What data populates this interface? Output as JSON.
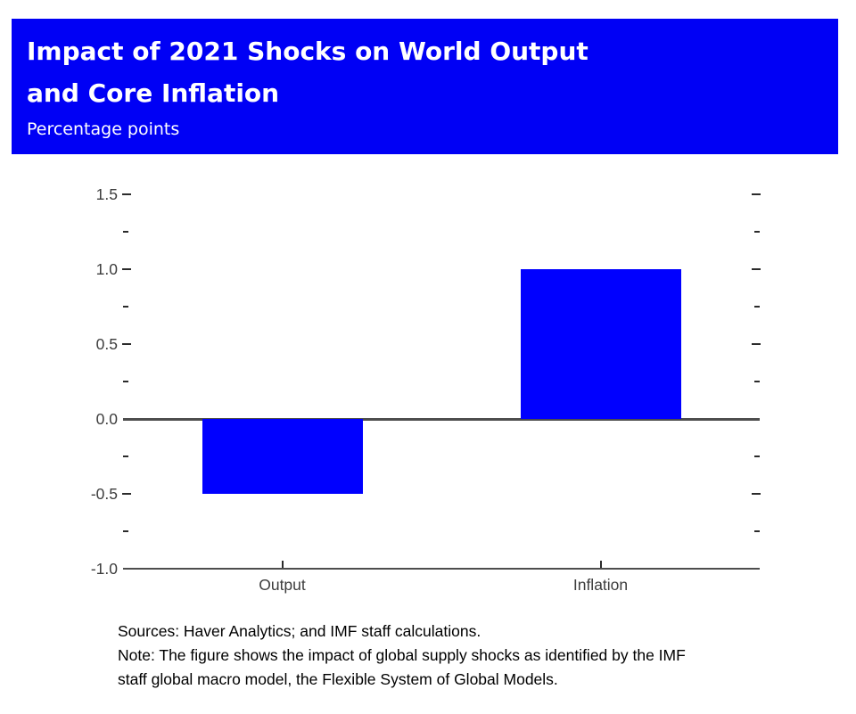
{
  "header": {
    "title_line1": "Impact of 2021 Shocks on World Output",
    "title_line2": "and Core Inflation",
    "subtitle": "Percentage points"
  },
  "colors": {
    "banner_blue": "#0000f5",
    "bar_blue": "#0000ff",
    "axis_gray": "#4d4d4d",
    "tick_gray": "#2b2b2b",
    "label_gray": "#3d3d3d"
  },
  "chart_data": {
    "type": "bar",
    "title": "Impact of 2021 Shocks on World Output and Core Inflation",
    "ylabel": "Percentage points",
    "categories": [
      "Output",
      "Inflation"
    ],
    "values": [
      -0.5,
      1.0
    ],
    "ylim": [
      -1.0,
      1.5
    ],
    "yticks_major": {
      "values": [
        1.5,
        1.0,
        0.5,
        0.0,
        -0.5,
        -1.0
      ],
      "labels": [
        "1.5",
        "1.0",
        "0.5",
        "0.0",
        "-0.5",
        "-1.0"
      ]
    },
    "yticks_minor": [
      1.25,
      0.75,
      0.25,
      -0.25,
      -0.75
    ],
    "axis_lines_at": [
      0.0,
      -1.0
    ],
    "grid": false,
    "legend": "none",
    "bar_color": "#0000ff",
    "tick_sides": "left-and-right"
  },
  "footnotes": {
    "line1": "Sources: Haver Analytics; and IMF staff calculations.",
    "line2": "Note: The figure shows the impact of global supply shocks as identified by the IMF",
    "line3": "staff global macro model, the Flexible System of Global Models."
  }
}
